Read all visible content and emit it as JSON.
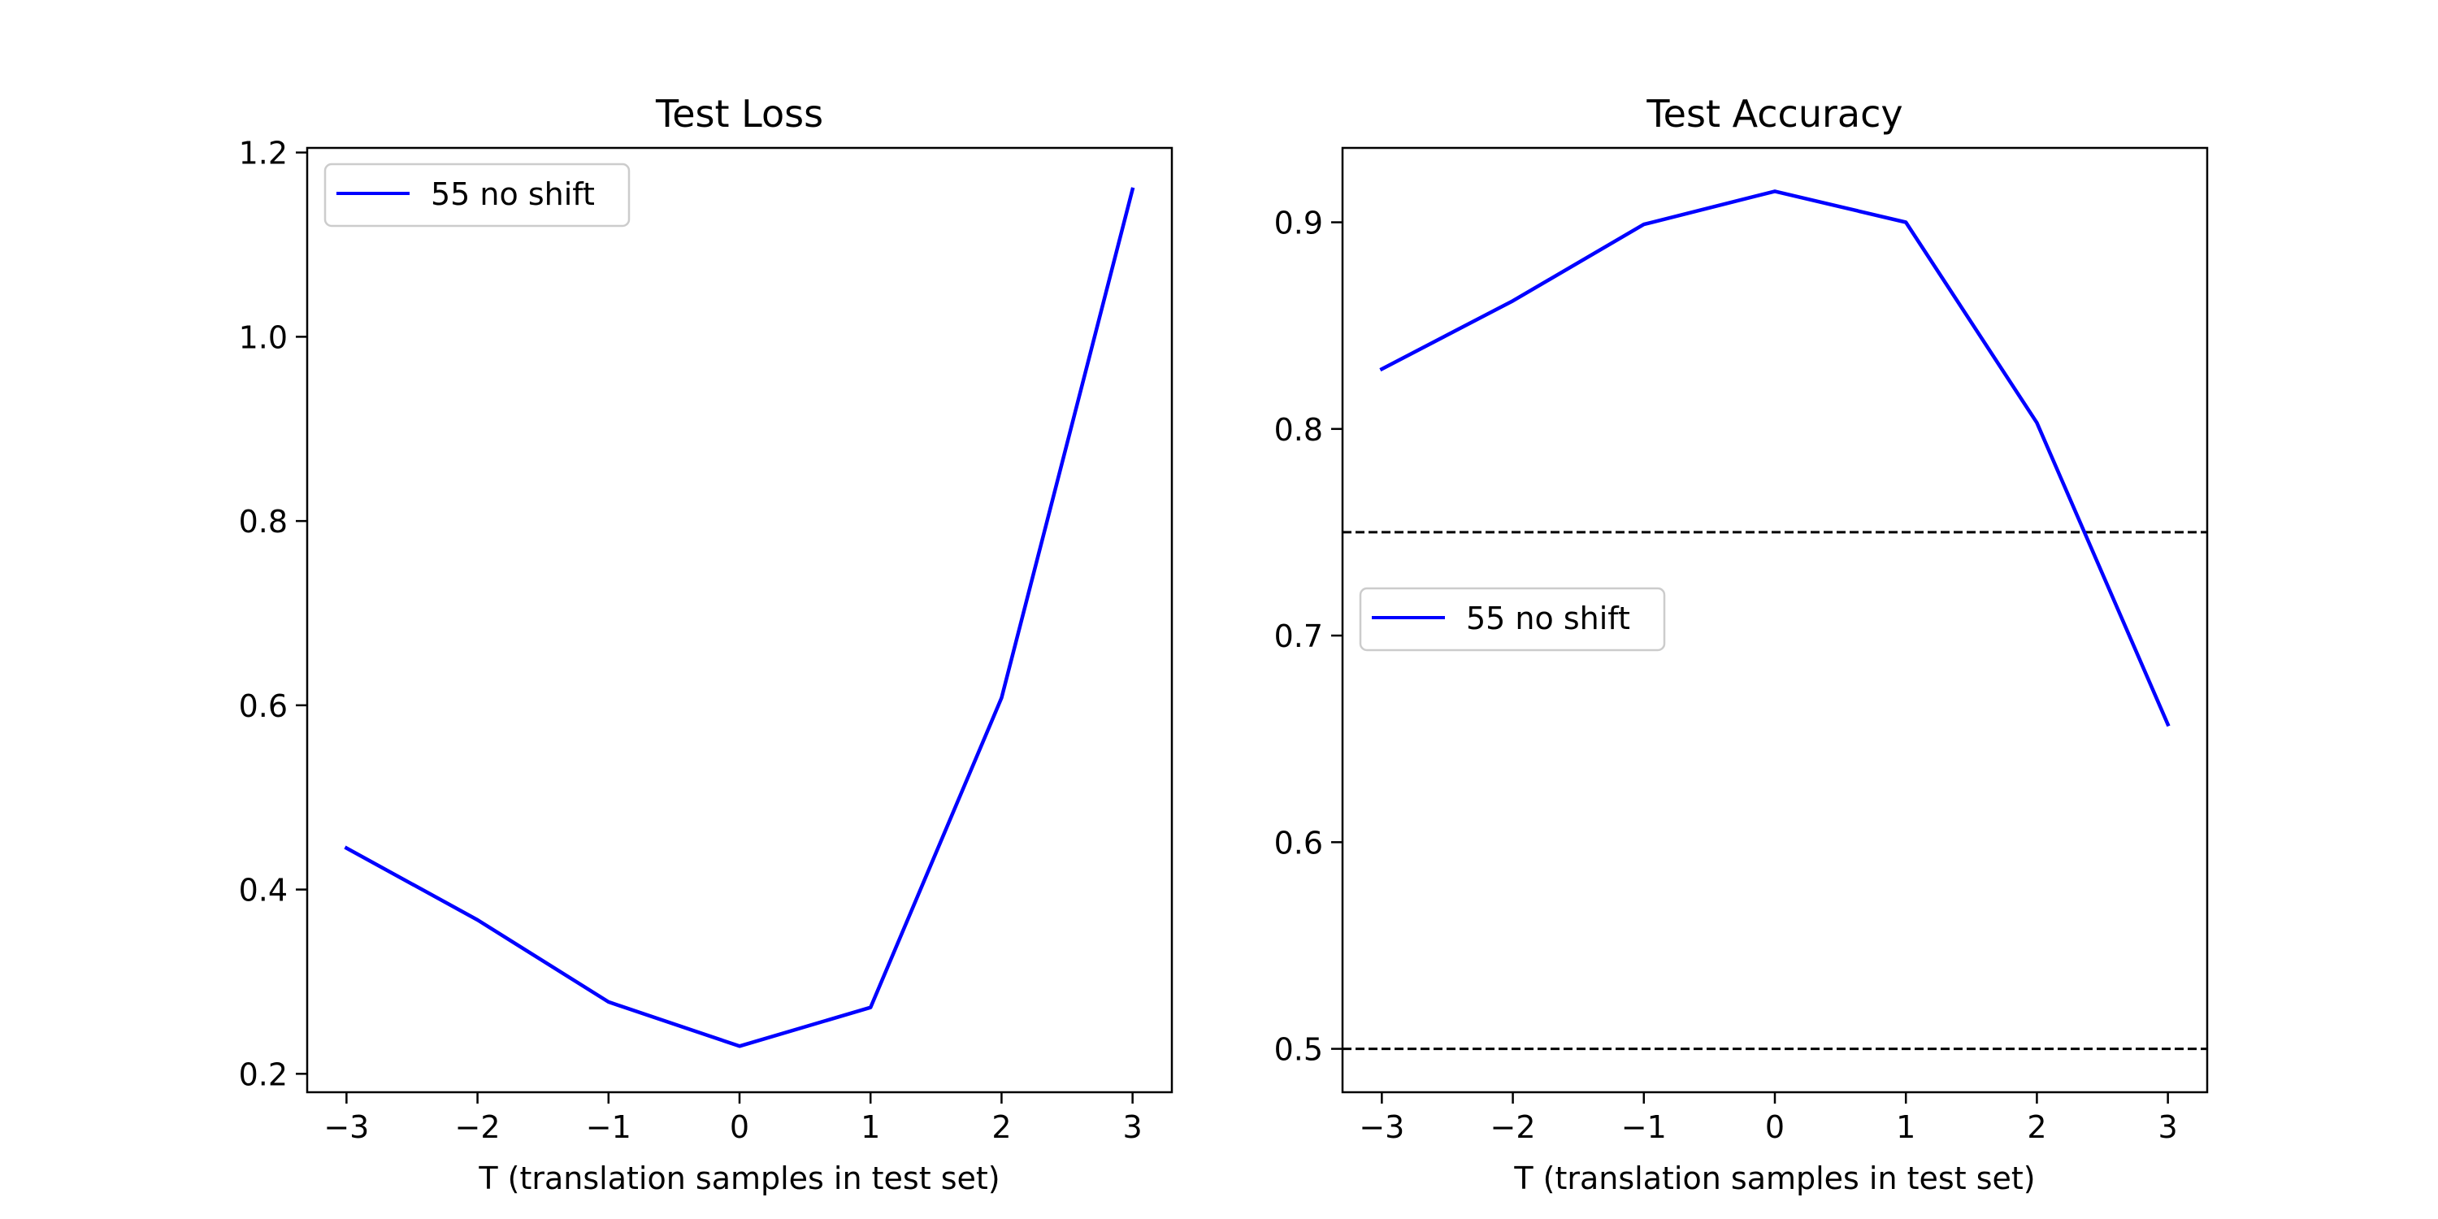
{
  "chart_data": [
    {
      "type": "line",
      "title": "Test Loss",
      "xlabel": "T  (translation samples in test set)",
      "ylabel": "",
      "xlim": [
        -3.3,
        3.3
      ],
      "ylim": [
        0.18,
        1.205
      ],
      "xticks": [
        -3,
        -2,
        -1,
        0,
        1,
        2,
        3
      ],
      "xtick_labels": [
        "−3",
        "−2",
        "−1",
        "0",
        "1",
        "2",
        "3"
      ],
      "yticks": [
        0.2,
        0.4,
        0.6,
        0.8,
        1.0,
        1.2
      ],
      "ytick_labels": [
        "0.2",
        "0.4",
        "0.6",
        "0.8",
        "1.0",
        "1.2"
      ],
      "grid": false,
      "legend_position": "upper-left",
      "series": [
        {
          "name": "55 no shift",
          "color": "#0000ff",
          "x": [
            -3,
            -2,
            -1,
            0,
            1,
            2,
            3
          ],
          "values": [
            0.445,
            0.367,
            0.278,
            0.23,
            0.272,
            0.608,
            1.16
          ]
        }
      ],
      "reference_lines": []
    },
    {
      "type": "line",
      "title": "Test Accuracy",
      "xlabel": "T  (translation samples in test set)",
      "ylabel": "",
      "xlim": [
        -3.3,
        3.3
      ],
      "ylim": [
        0.479,
        0.936
      ],
      "xticks": [
        -3,
        -2,
        -1,
        0,
        1,
        2,
        3
      ],
      "xtick_labels": [
        "−3",
        "−2",
        "−1",
        "0",
        "1",
        "2",
        "3"
      ],
      "yticks": [
        0.5,
        0.6,
        0.7,
        0.8,
        0.9
      ],
      "ytick_labels": [
        "0.5",
        "0.6",
        "0.7",
        "0.8",
        "0.9"
      ],
      "grid": false,
      "legend_position": "center-left",
      "series": [
        {
          "name": "55 no shift",
          "color": "#0000ff",
          "x": [
            -3,
            -2,
            -1,
            0,
            1,
            2,
            3
          ],
          "values": [
            0.829,
            0.862,
            0.899,
            0.915,
            0.9,
            0.803,
            0.657
          ]
        }
      ],
      "reference_lines": [
        {
          "axis": "y",
          "value": 0.75,
          "style": "dashed",
          "color": "#000000"
        },
        {
          "axis": "y",
          "value": 0.5,
          "style": "dashed",
          "color": "#000000"
        }
      ]
    }
  ]
}
